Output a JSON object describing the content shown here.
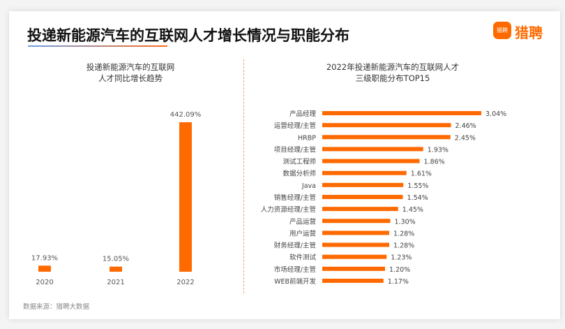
{
  "header": {
    "title": "投递新能源汽车的互联网人才增长情况与职能分布",
    "logo_text": "猎聘",
    "logo_icon_text": "猎聘"
  },
  "colors": {
    "bar": "#ff6a00",
    "divider": "#f9a070"
  },
  "source": "数据来源：猎聘大数据",
  "chart_data": [
    {
      "type": "bar",
      "title_lines": [
        "投递新能源汽车的互联网",
        "人才同比增长趋势"
      ],
      "categories": [
        "2020",
        "2021",
        "2022"
      ],
      "values": [
        17.93,
        15.05,
        442.09
      ],
      "data_labels": [
        "17.93%",
        "15.05%",
        "442.09%"
      ],
      "orientation": "vertical",
      "grid": false
    },
    {
      "type": "bar",
      "title_lines": [
        "2022年投递新能源汽车的互联网人才",
        "三级职能分布TOP15"
      ],
      "orientation": "horizontal",
      "grid": false,
      "categories": [
        "产品经理",
        "运营经理/主管",
        "HRBP",
        "项目经理/主管",
        "测试工程师",
        "数据分析师",
        "Java",
        "销售经理/主管",
        "人力资源经理/主管",
        "产品运营",
        "用户运营",
        "财务经理/主管",
        "软件测试",
        "市场经理/主管",
        "WEB前端开发"
      ],
      "values": [
        3.04,
        2.46,
        2.45,
        1.93,
        1.86,
        1.61,
        1.55,
        1.54,
        1.45,
        1.3,
        1.28,
        1.28,
        1.23,
        1.2,
        1.17
      ],
      "data_labels": [
        "3.04%",
        "2.46%",
        "2.45%",
        "1.93%",
        "1.86%",
        "1.61%",
        "1.55%",
        "1.54%",
        "1.45%",
        "1.30%",
        "1.28%",
        "1.28%",
        "1.23%",
        "1.20%",
        "1.17%"
      ]
    }
  ]
}
